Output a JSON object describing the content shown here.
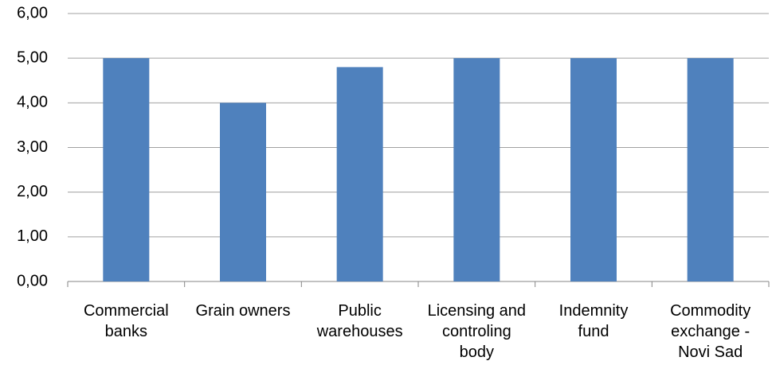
{
  "chart_data": {
    "type": "bar",
    "categories": [
      "Commercial banks",
      "Grain owners",
      "Public warehouses",
      "Licensing and controling body",
      "Indemnity fund",
      "Commodity exchange - Novi Sad"
    ],
    "values": [
      5,
      4,
      4.8,
      5,
      5,
      5
    ],
    "color": "#4f81bd",
    "ylim": [
      0,
      6
    ],
    "yticks": [
      {
        "value": 0,
        "label": "0,00"
      },
      {
        "value": 1,
        "label": "1,00"
      },
      {
        "value": 2,
        "label": "2,00"
      },
      {
        "value": 3,
        "label": "3,00"
      },
      {
        "value": 4,
        "label": "4,00"
      },
      {
        "value": 5,
        "label": "5,00"
      },
      {
        "value": 6,
        "label": "6,00"
      }
    ],
    "grid": true
  }
}
